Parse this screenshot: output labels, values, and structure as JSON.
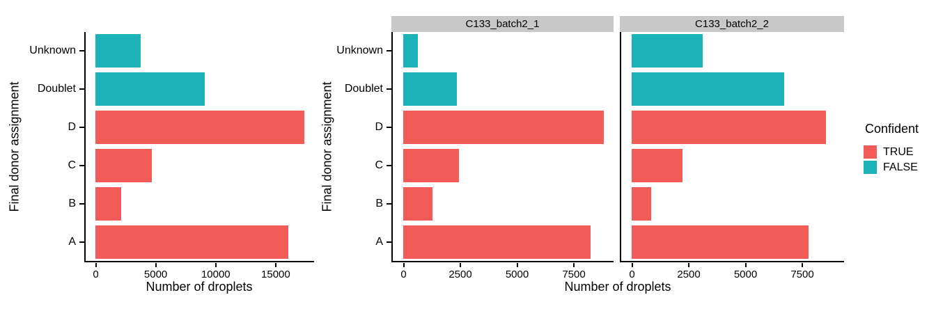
{
  "legend": {
    "title": "Confident",
    "items": [
      {
        "label": "TRUE",
        "color": "#F25B57"
      },
      {
        "label": "FALSE",
        "color": "#1BB3B7"
      }
    ]
  },
  "colors": {
    "true_red": "#F25B57",
    "false_teal": "#1BB3B7",
    "strip_gray": "#C8C8C8",
    "axis_black": "#000000",
    "background": "#FFFFFF"
  },
  "chart_data": [
    {
      "type": "bar",
      "orientation": "horizontal",
      "panel": "combined",
      "title": "",
      "xlabel": "Number of droplets",
      "ylabel": "Final donor assignment",
      "categories": [
        "Unknown",
        "Doublet",
        "D",
        "C",
        "B",
        "A"
      ],
      "values": [
        3760,
        9100,
        17390,
        4700,
        2130,
        16050
      ],
      "confident": [
        "FALSE",
        "FALSE",
        "TRUE",
        "TRUE",
        "TRUE",
        "TRUE"
      ],
      "colors": [
        "#1BB3B7",
        "#1BB3B7",
        "#F25B57",
        "#F25B57",
        "#F25B57",
        "#F25B57"
      ],
      "x_ticks": [
        0,
        5000,
        10000,
        15000
      ],
      "xlim": [
        0,
        18200
      ],
      "grid": false,
      "legend_position": "none"
    },
    {
      "type": "bar",
      "orientation": "horizontal",
      "title": "",
      "xlabel": "Number of droplets",
      "ylabel": "Final donor assignment",
      "categories": [
        "Unknown",
        "Doublet",
        "D",
        "C",
        "B",
        "A"
      ],
      "facets": [
        {
          "label": "C133_batch2_1",
          "values": [
            640,
            2370,
            8840,
            2460,
            1280,
            8250
          ]
        },
        {
          "label": "C133_batch2_2",
          "values": [
            3120,
            6730,
            8550,
            2240,
            850,
            7800
          ]
        }
      ],
      "confident": [
        "FALSE",
        "FALSE",
        "TRUE",
        "TRUE",
        "TRUE",
        "TRUE"
      ],
      "colors": [
        "#1BB3B7",
        "#1BB3B7",
        "#F25B57",
        "#F25B57",
        "#F25B57",
        "#F25B57"
      ],
      "x_ticks": [
        0,
        2500,
        5000,
        7500
      ],
      "xlim": [
        0,
        9250
      ],
      "grid": false,
      "legend_position": "right"
    }
  ]
}
